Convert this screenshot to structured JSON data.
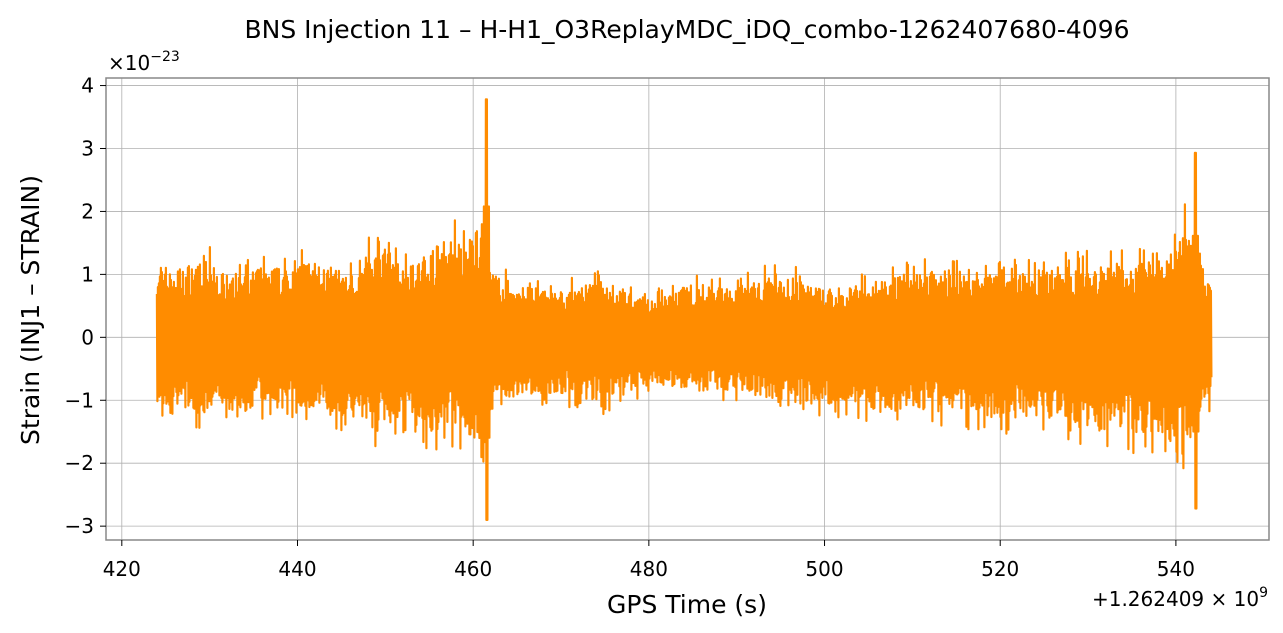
{
  "chart_data": {
    "type": "line",
    "title": "BNS Injection 11 – H-H1_O3ReplayMDC_iDQ_combo-1262407680-4096",
    "xlabel": "GPS Time (s)",
    "ylabel": "Strain (INJ1 – STRAIN)",
    "y_scale_base": "×10",
    "y_scale_exp": "−23",
    "x_offset_base": "+1.262409 × 10",
    "x_offset_exp": "9",
    "xlim": [
      418.2,
      550.6
    ],
    "ylim": [
      -3.22,
      4.12
    ],
    "x_ticks": [
      420,
      440,
      460,
      480,
      500,
      520,
      540
    ],
    "x_tick_labels": [
      "420",
      "440",
      "460",
      "480",
      "500",
      "520",
      "540"
    ],
    "y_ticks": [
      -3,
      -2,
      -1,
      0,
      1,
      2,
      3,
      4
    ],
    "y_tick_labels": [
      "−3",
      "−2",
      "−1",
      "0",
      "1",
      "2",
      "3",
      "4"
    ],
    "grid": true,
    "color": "#ff8c00",
    "series": [
      {
        "x_start": 424.0,
        "x_end": 544.0,
        "envelope": {
          "x": [
            424.0,
            425.0,
            427.0,
            429.0,
            431.0,
            433.0,
            435.0,
            437.0,
            439.0,
            441.0,
            443.0,
            445.0,
            447.0,
            449.0,
            451.0,
            453.0,
            455.0,
            457.0,
            459.0,
            460.5,
            461.2,
            461.5,
            462.0,
            463.0,
            466.0,
            470.0,
            475.0,
            480.0,
            485.0,
            490.0,
            495.0,
            500.0,
            505.0,
            510.0,
            515.0,
            520.0,
            525.0,
            530.0,
            535.0,
            539.0,
            541.0,
            542.0,
            543.0,
            544.0
          ],
          "upper": [
            1.25,
            1.15,
            1.1,
            1.35,
            1.05,
            0.95,
            1.1,
            1.15,
            1.05,
            1.25,
            1.15,
            1.05,
            1.05,
            1.7,
            1.25,
            1.05,
            1.4,
            1.55,
            1.6,
            1.8,
            2.3,
            1.2,
            1.05,
            0.95,
            0.8,
            0.75,
            0.9,
            0.6,
            0.85,
            0.8,
            1.05,
            0.75,
            0.85,
            1.05,
            1.1,
            1.0,
            1.1,
            1.15,
            1.2,
            1.3,
            1.8,
            1.4,
            1.1,
            1.0
          ],
          "lower": [
            -1.05,
            -1.1,
            -1.1,
            -1.25,
            -1.05,
            -1.2,
            -1.15,
            -1.05,
            -1.05,
            -1.2,
            -1.25,
            -1.25,
            -1.1,
            -1.55,
            -1.35,
            -1.35,
            -1.6,
            -1.45,
            -1.5,
            -1.75,
            -2.05,
            -1.3,
            -0.95,
            -0.95,
            -0.95,
            -0.9,
            -1.05,
            -0.75,
            -0.85,
            -0.85,
            -1.1,
            -1.05,
            -1.2,
            -1.15,
            -1.2,
            -1.3,
            -1.25,
            -1.5,
            -1.55,
            -1.65,
            -1.75,
            -1.5,
            -1.15,
            -0.95
          ]
        },
        "peaks": [
          {
            "x": 461.5,
            "max": 3.78,
            "min": -2.9
          },
          {
            "x": 542.2,
            "max": 2.93,
            "min": -2.72
          }
        ]
      }
    ]
  }
}
